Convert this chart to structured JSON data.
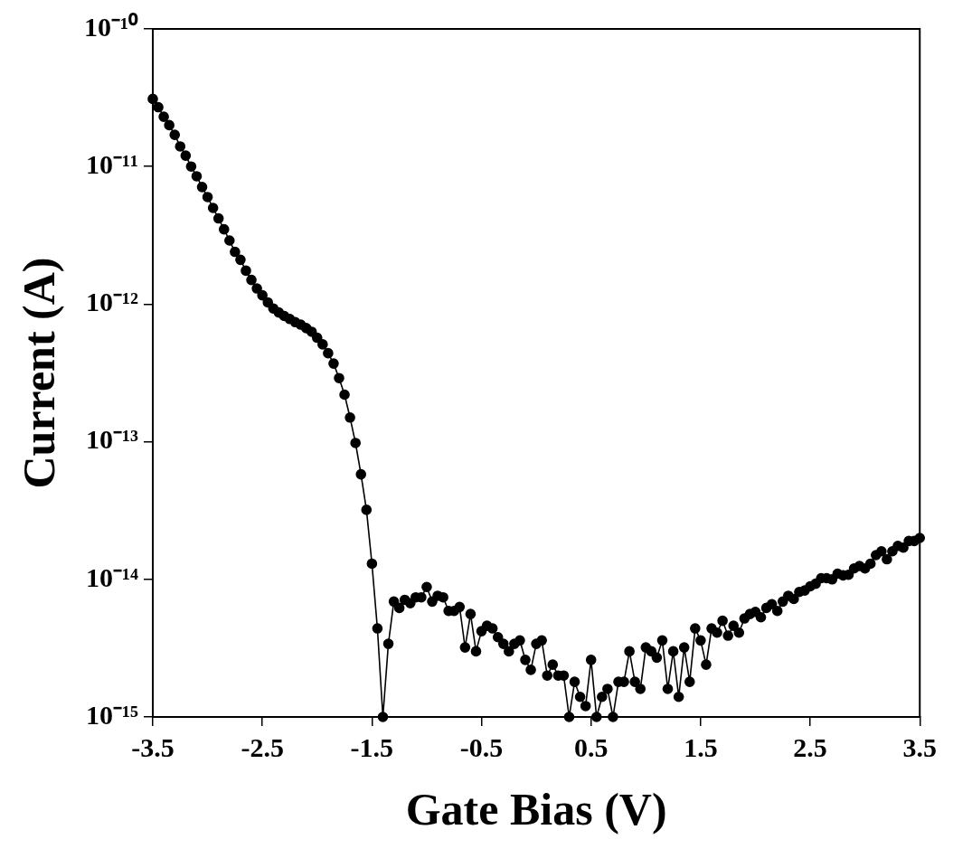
{
  "chart_data": {
    "type": "line",
    "xlabel": "Gate Bias (V)",
    "ylabel": "Current (A)",
    "log": "y",
    "grid": false,
    "legend": false,
    "marker": "circle",
    "line_style": "solid",
    "xlim": [
      -3.5,
      3.5
    ],
    "xticks": [
      -3.5,
      -2.5,
      -1.5,
      -0.5,
      0.5,
      1.5,
      2.5,
      3.5
    ],
    "ylim": [
      1e-15,
      1e-10
    ],
    "yticks": [
      {
        "value": 1e-15,
        "label": "10⁻¹⁵"
      },
      {
        "value": 1e-14,
        "label": "10⁻¹⁴"
      },
      {
        "value": 1e-13,
        "label": "10⁻¹³"
      },
      {
        "value": 1e-12,
        "label": "10⁻¹²"
      },
      {
        "value": 1e-11,
        "label": "10⁻¹¹"
      },
      {
        "value": 1e-10,
        "label": "10⁻¹⁰"
      }
    ],
    "series": [
      {
        "color": "#000000",
        "x": [
          -3.5,
          -3.45,
          -3.4,
          -3.35,
          -3.3,
          -3.25,
          -3.2,
          -3.15,
          -3.1,
          -3.05,
          -3.0,
          -2.95,
          -2.9,
          -2.85,
          -2.8,
          -2.75,
          -2.7,
          -2.65,
          -2.6,
          -2.55,
          -2.5,
          -2.45,
          -2.4,
          -2.35,
          -2.3,
          -2.25,
          -2.2,
          -2.15,
          -2.1,
          -2.05,
          -2.0,
          -1.95,
          -1.9,
          -1.85,
          -1.8,
          -1.75,
          -1.7,
          -1.65,
          -1.6,
          -1.55,
          -1.5,
          -1.45,
          -1.4,
          -1.35,
          -1.3,
          -1.25,
          -1.2,
          -1.15,
          -1.1,
          -1.05,
          -1.0,
          -0.95,
          -0.9,
          -0.85,
          -0.8,
          -0.75,
          -0.7,
          -0.65,
          -0.6,
          -0.55,
          -0.5,
          -0.45,
          -0.4,
          -0.35,
          -0.3,
          -0.25,
          -0.2,
          -0.15,
          -0.1,
          -0.05,
          0.0,
          0.05,
          0.1,
          0.15,
          0.2,
          0.25,
          0.3,
          0.35,
          0.4,
          0.45,
          0.5,
          0.55,
          0.6,
          0.65,
          0.7,
          0.75,
          0.8,
          0.85,
          0.9,
          0.95,
          1.0,
          1.05,
          1.1,
          1.15,
          1.2,
          1.25,
          1.3,
          1.35,
          1.4,
          1.45,
          1.5,
          1.55,
          1.6,
          1.65,
          1.7,
          1.75,
          1.8,
          1.85,
          1.9,
          1.95,
          2.0,
          2.05,
          2.1,
          2.15,
          2.2,
          2.25,
          2.3,
          2.35,
          2.4,
          2.45,
          2.5,
          2.55,
          2.6,
          2.65,
          2.7,
          2.75,
          2.8,
          2.85,
          2.9,
          2.95,
          3.0,
          3.05,
          3.1,
          3.15,
          3.2,
          3.25,
          3.3,
          3.35,
          3.4,
          3.45,
          3.5
        ],
        "values": [
          3.1e-11,
          2.7e-11,
          2.3e-11,
          2e-11,
          1.7e-11,
          1.4e-11,
          1.2e-11,
          1e-11,
          8.5e-12,
          7.1e-12,
          6e-12,
          5e-12,
          4.2e-12,
          3.5e-12,
          2.9e-12,
          2.4e-12,
          2.1e-12,
          1.75e-12,
          1.5e-12,
          1.3e-12,
          1.16e-12,
          1.03e-12,
          9.3e-13,
          8.7e-13,
          8.2e-13,
          7.8e-13,
          7.4e-13,
          7.1e-13,
          6.7e-13,
          6.3e-13,
          5.7e-13,
          5.1e-13,
          4.4e-13,
          3.7e-13,
          2.9e-13,
          2.2e-13,
          1.5e-13,
          9.8e-14,
          5.8e-14,
          3.2e-14,
          1.3e-14,
          4.4e-15,
          1e-15,
          3.4e-15,
          6.9e-15,
          6.2e-15,
          7.1e-15,
          6.7e-15,
          7.4e-15,
          7.4e-15,
          8.8e-15,
          6.9e-15,
          7.6e-15,
          7.4e-15,
          5.9e-15,
          5.9e-15,
          6.3e-15,
          3.2e-15,
          5.6e-15,
          3e-15,
          4.2e-15,
          4.6e-15,
          4.4e-15,
          3.8e-15,
          3.4e-15,
          3e-15,
          3.4e-15,
          3.6e-15,
          2.6e-15,
          2.2e-15,
          3.4e-15,
          3.6e-15,
          2e-15,
          2.4e-15,
          2e-15,
          2e-15,
          1e-15,
          1.8e-15,
          1.4e-15,
          1.2e-15,
          2.6e-15,
          1e-15,
          1.4e-15,
          1.6e-15,
          1e-15,
          1.8e-15,
          1.8e-15,
          3e-15,
          1.8e-15,
          1.6e-15,
          3.2e-15,
          3e-15,
          2.7e-15,
          3.6e-15,
          1.6e-15,
          3e-15,
          1.4e-15,
          3.2e-15,
          1.8e-15,
          4.4e-15,
          3.6e-15,
          2.4e-15,
          4.4e-15,
          4.1e-15,
          5e-15,
          3.9e-15,
          4.6e-15,
          4.1e-15,
          5.2e-15,
          5.6e-15,
          5.8e-15,
          5.3e-15,
          6.2e-15,
          6.6e-15,
          5.9e-15,
          6.9e-15,
          7.6e-15,
          7.2e-15,
          8.1e-15,
          8.3e-15,
          8.9e-15,
          9.3e-15,
          1.02e-14,
          1.02e-14,
          1e-14,
          1.1e-14,
          1.07e-14,
          1.08e-14,
          1.2e-14,
          1.25e-14,
          1.2e-14,
          1.3e-14,
          1.5e-14,
          1.6e-14,
          1.4e-14,
          1.6e-14,
          1.75e-14,
          1.7e-14,
          1.9e-14,
          1.9e-14,
          2e-14
        ]
      }
    ]
  }
}
